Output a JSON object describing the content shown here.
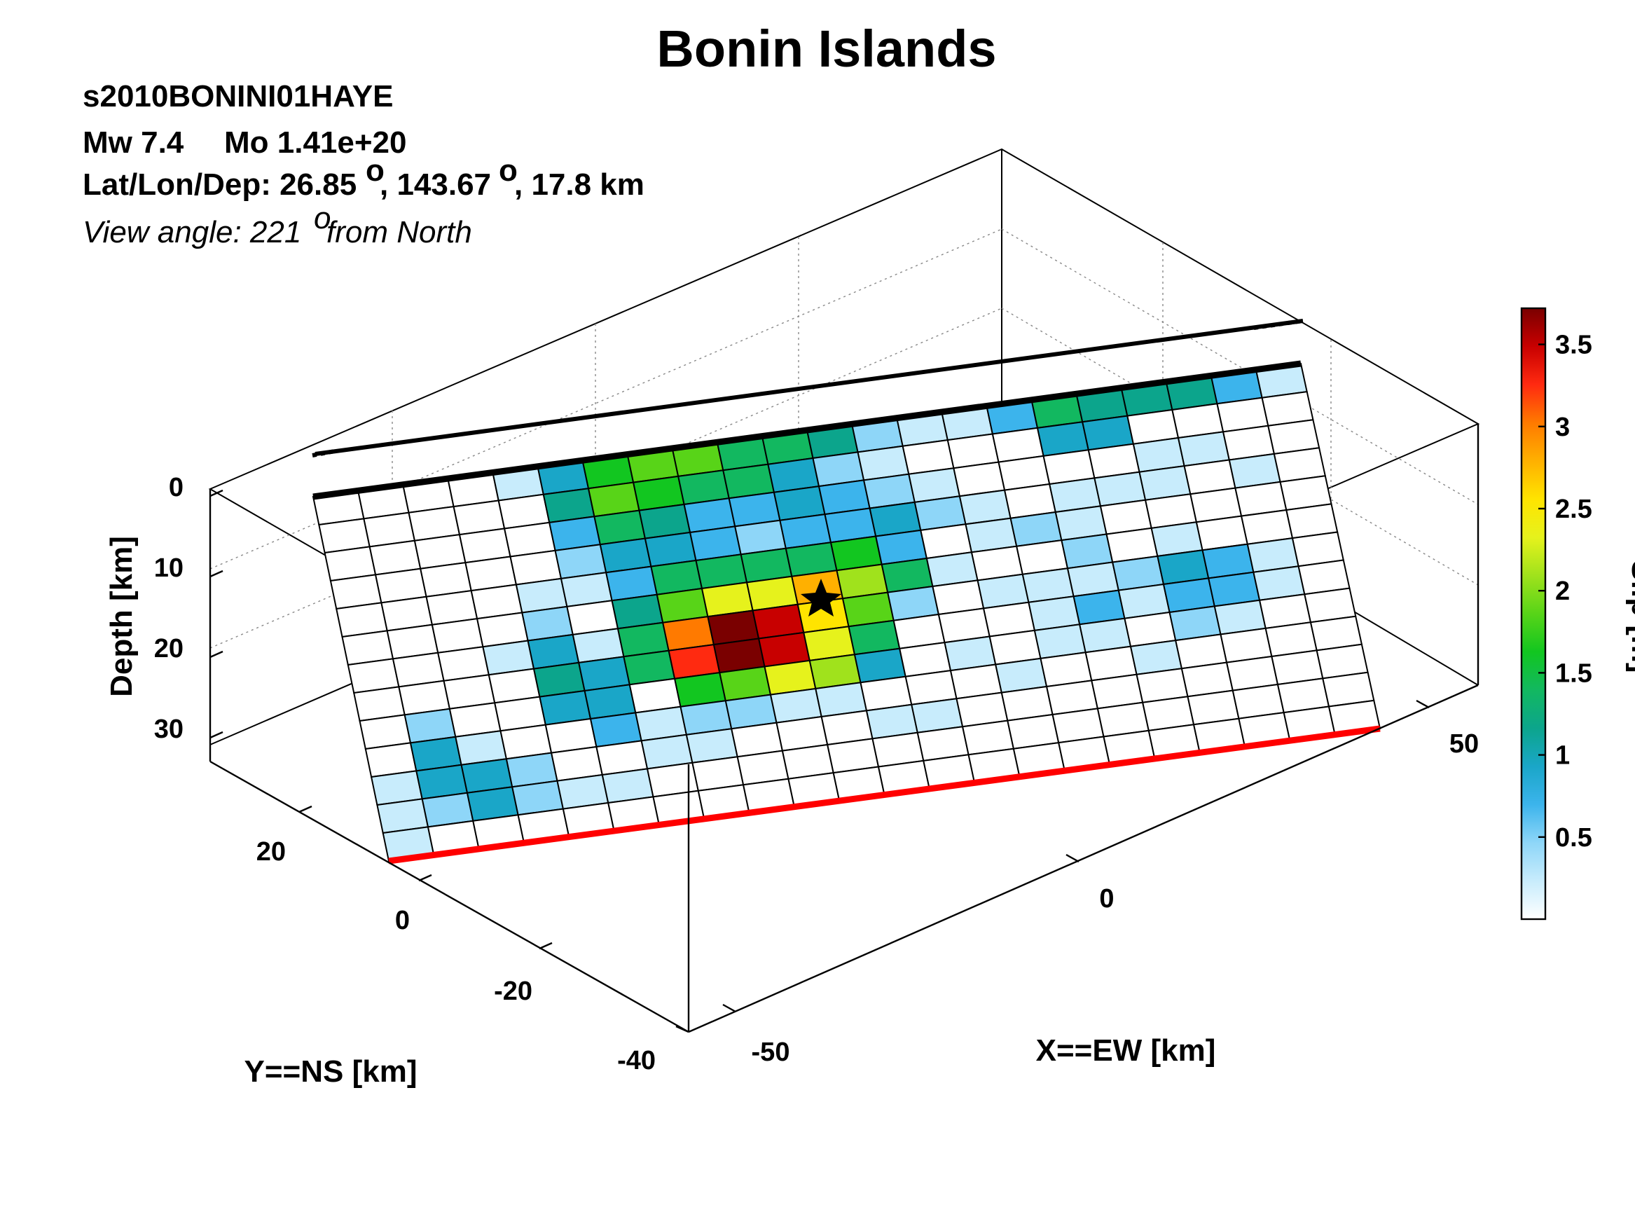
{
  "title": "Bonin Islands",
  "header": {
    "event_id": "s2010BONINI01HAYE",
    "mw": "Mw 7.4",
    "mo": "Mo 1.41e+20",
    "location_prefix": "Lat/Lon/Dep: 26.85",
    "location_lon": ", 143.67",
    "location_suffix": ", 17.8 km",
    "degree_mark": "o",
    "view_prefix": "View angle: 221",
    "view_suffix": " from North"
  },
  "chart_data": {
    "type": "heatmap",
    "title": "Bonin Islands",
    "xlabel": "X==EW [km]",
    "ylabel": "Y==NS [km]",
    "zlabel": "Depth [km]",
    "colorbar_label": "Slip [m]",
    "x_ticks": [
      "-50",
      "0",
      "50"
    ],
    "y_ticks": [
      "20",
      "0",
      "-20",
      "-40"
    ],
    "z_ticks": [
      "0",
      "10",
      "20",
      "30"
    ],
    "colorbar_ticks": [
      "0.5",
      "1",
      "1.5",
      "2",
      "2.5",
      "3",
      "3.5"
    ],
    "colorbar_range": [
      0,
      3.72
    ],
    "grid": true,
    "legend": "none",
    "colormap": [
      "#ffffff",
      "#c8ecfc",
      "#8ed6f8",
      "#3cb4ec",
      "#1aa6c8",
      "#0ca58c",
      "#12b860",
      "#12c620",
      "#58d418",
      "#a0e21c",
      "#e6f21c",
      "#ffe400",
      "#ffb000",
      "#ff7a00",
      "#ff2a10",
      "#c80000",
      "#7a0000"
    ],
    "trench_line_color": "#ff0000",
    "hypocenter_marker": "star",
    "fault_rows": 13,
    "fault_cols": 22,
    "slip_m": [
      [
        0.0,
        0.0,
        0.0,
        0.0,
        0.2,
        1.0,
        1.7,
        1.9,
        1.8,
        1.5,
        1.4,
        1.1,
        0.4,
        0.2,
        0.1,
        0.6,
        1.3,
        1.2,
        1.2,
        1.1,
        0.8,
        0.05
      ],
      [
        0.0,
        0.0,
        0.0,
        0.0,
        0.0,
        1.2,
        1.9,
        1.6,
        1.4,
        1.3,
        0.9,
        0.5,
        0.3,
        0.0,
        0.0,
        0.0,
        0.9,
        1.0,
        0.0,
        0.0,
        0.0,
        0.0
      ],
      [
        0.0,
        0.0,
        0.0,
        0.0,
        0.0,
        0.7,
        1.3,
        1.1,
        0.6,
        0.7,
        0.9,
        0.8,
        0.4,
        0.2,
        0.0,
        0.0,
        0.0,
        0.0,
        0.1,
        0.2,
        0.0,
        0.0
      ],
      [
        0.0,
        0.0,
        0.0,
        0.0,
        0.0,
        0.5,
        0.9,
        1.0,
        0.8,
        0.4,
        0.6,
        0.8,
        1.0,
        0.4,
        0.2,
        0.0,
        0.2,
        0.1,
        0.1,
        0.0,
        0.2,
        0.0
      ],
      [
        0.0,
        0.0,
        0.0,
        0.0,
        0.2,
        0.1,
        0.8,
        1.5,
        1.3,
        1.5,
        1.4,
        1.7,
        0.8,
        0.0,
        0.1,
        0.4,
        0.2,
        0.0,
        0.0,
        0.0,
        0.0,
        0.0
      ],
      [
        0.0,
        0.0,
        0.0,
        0.0,
        0.4,
        0.0,
        1.2,
        1.8,
        2.3,
        2.4,
        2.7,
        2.0,
        1.3,
        0.3,
        0.0,
        0.0,
        0.4,
        0.0,
        0.2,
        0.0,
        0.0,
        0.0
      ],
      [
        0.0,
        0.0,
        0.0,
        0.1,
        1.0,
        0.2,
        1.5,
        3.1,
        3.7,
        3.4,
        2.6,
        1.9,
        0.4,
        0.0,
        0.1,
        0.2,
        0.1,
        0.5,
        0.9,
        0.6,
        0.1,
        0.0
      ],
      [
        0.0,
        0.0,
        0.0,
        0.0,
        1.2,
        0.9,
        1.3,
        3.2,
        3.7,
        3.4,
        2.4,
        1.4,
        0.0,
        0.0,
        0.0,
        0.2,
        0.6,
        0.3,
        0.7,
        0.8,
        0.3,
        0.0
      ],
      [
        0.0,
        0.5,
        0.0,
        0.0,
        1.0,
        1.0,
        0.0,
        1.6,
        1.8,
        2.3,
        2.0,
        1.0,
        0.0,
        0.1,
        0.0,
        0.2,
        0.1,
        0.0,
        0.4,
        0.3,
        0.0,
        0.0
      ],
      [
        0.0,
        0.9,
        0.3,
        0.0,
        0.0,
        0.7,
        0.2,
        0.4,
        0.4,
        0.3,
        0.2,
        0.0,
        0.0,
        0.0,
        0.1,
        0.0,
        0.0,
        0.1,
        0.0,
        0.0,
        0.0,
        0.0
      ],
      [
        0.1,
        0.9,
        1.0,
        0.4,
        0.0,
        0.0,
        0.1,
        0.1,
        0.0,
        0.0,
        0.0,
        0.2,
        0.1,
        0.0,
        0.0,
        0.0,
        0.0,
        0.0,
        0.0,
        0.0,
        0.0,
        0.0
      ],
      [
        0.2,
        0.4,
        0.9,
        0.5,
        0.1,
        0.2,
        0.0,
        0.0,
        0.0,
        0.0,
        0.0,
        0.0,
        0.0,
        0.0,
        0.0,
        0.0,
        0.0,
        0.0,
        0.0,
        0.0,
        0.0,
        0.0
      ],
      [
        0.1,
        0.0,
        0.0,
        0.0,
        0.0,
        0.0,
        0.0,
        0.0,
        0.0,
        0.0,
        0.0,
        0.0,
        0.0,
        0.0,
        0.0,
        0.0,
        0.0,
        0.0,
        0.0,
        0.0,
        0.0,
        0.0
      ]
    ]
  }
}
